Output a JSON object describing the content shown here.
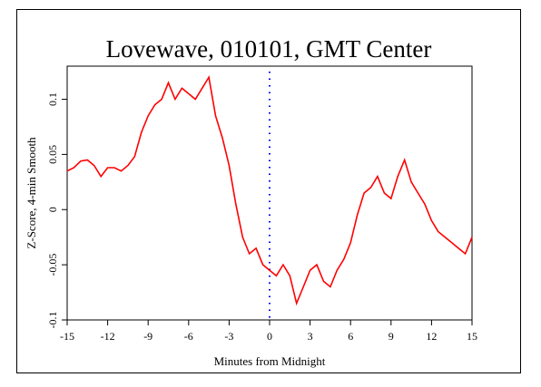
{
  "chart_data": {
    "type": "line",
    "title": "Lovewave, 010101, GMT Center",
    "xlabel": "Minutes from Midnight",
    "ylabel": "Z-Score, 4-min Smooth",
    "xlim": [
      -15,
      15
    ],
    "ylim": [
      -0.1,
      0.13
    ],
    "xticks": [
      -15,
      -12,
      -9,
      -6,
      -3,
      0,
      3,
      6,
      9,
      12,
      15
    ],
    "xtick_labels": [
      "-15",
      "-12",
      "-9",
      "-6",
      "-3",
      "0",
      "3",
      "6",
      "9",
      "12",
      "15"
    ],
    "yticks": [
      -0.1,
      -0.05,
      0,
      0.05,
      0.1
    ],
    "ytick_labels": [
      "-0.1",
      "-0.05",
      "0",
      "0.05",
      "0.1"
    ],
    "grid": false,
    "colors": {
      "series": "#ff0000",
      "marker": "#0000ff"
    },
    "vline": {
      "x": 0,
      "style": "dotted",
      "color": "#0000ff"
    },
    "series": [
      {
        "x": [
          -15,
          -14.5,
          -14,
          -13.5,
          -13,
          -12.5,
          -12,
          -11.5,
          -11,
          -10.5,
          -10,
          -9.5,
          -9,
          -8.5,
          -8,
          -7.5,
          -7,
          -6.5,
          -6,
          -5.5,
          -5,
          -4.5,
          -4,
          -3.5,
          -3,
          -2.5,
          -2,
          -1.5,
          -1,
          -0.5,
          0,
          0.5,
          1,
          1.5,
          2,
          2.5,
          3,
          3.5,
          4,
          4.5,
          5,
          5.5,
          6,
          6.5,
          7,
          7.5,
          8,
          8.5,
          9,
          9.5,
          10,
          10.5,
          11,
          11.5,
          12,
          12.5,
          13,
          13.5,
          14,
          14.5,
          15
        ],
        "y": [
          0.035,
          0.038,
          0.044,
          0.045,
          0.04,
          0.03,
          0.038,
          0.038,
          0.035,
          0.04,
          0.048,
          0.07,
          0.085,
          0.095,
          0.1,
          0.115,
          0.1,
          0.11,
          0.105,
          0.1,
          0.11,
          0.12,
          0.085,
          0.065,
          0.04,
          0.005,
          -0.025,
          -0.04,
          -0.035,
          -0.05,
          -0.055,
          -0.06,
          -0.05,
          -0.06,
          -0.085,
          -0.07,
          -0.055,
          -0.05,
          -0.065,
          -0.07,
          -0.055,
          -0.045,
          -0.03,
          -0.005,
          0.015,
          0.02,
          0.03,
          0.015,
          0.01,
          0.03,
          0.045,
          0.025,
          0.015,
          0.005,
          -0.01,
          -0.02,
          -0.025,
          -0.03,
          -0.035,
          -0.04,
          -0.025
        ]
      }
    ]
  }
}
